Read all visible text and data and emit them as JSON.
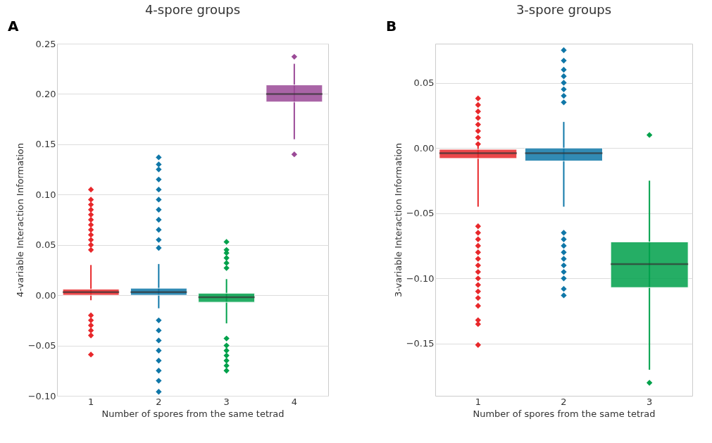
{
  "chart_data": [
    {
      "type": "box",
      "title": "4-spore groups",
      "xlabel": "Number of spores from the same tetrad",
      "ylabel": "4-variable Interaction Information",
      "annotations": [
        "A"
      ],
      "categories": [
        "1",
        "2",
        "3",
        "4"
      ],
      "colors": [
        "#e8282b",
        "#0f77a8",
        "#00a14b",
        "#9b4a97"
      ],
      "ylim": [
        -0.1,
        0.25
      ],
      "yticks": [
        {
          "value": -0.1,
          "label": "−0.10"
        },
        {
          "value": -0.05,
          "label": "−0.05"
        },
        {
          "value": 0.0,
          "label": "0.00"
        },
        {
          "value": 0.05,
          "label": "0.05"
        },
        {
          "value": 0.1,
          "label": "0.10"
        },
        {
          "value": 0.15,
          "label": "0.15"
        },
        {
          "value": 0.2,
          "label": "0.20"
        },
        {
          "value": 0.25,
          "label": "0.25"
        }
      ],
      "grid": "y",
      "marker": "diamond",
      "boxes": [
        {
          "low": -0.005,
          "q1": 0.0,
          "median": 0.003,
          "q3": 0.006,
          "high": 0.03,
          "outliers": [
            0.045,
            0.05,
            0.055,
            0.06,
            0.065,
            0.07,
            0.075,
            0.08,
            0.085,
            0.09,
            0.095,
            0.105,
            -0.02,
            -0.025,
            -0.03,
            -0.035,
            -0.04,
            -0.059
          ]
        },
        {
          "low": -0.013,
          "q1": 0.0,
          "median": 0.003,
          "q3": 0.007,
          "high": 0.031,
          "outliers": [
            0.047,
            0.055,
            0.065,
            0.075,
            0.085,
            0.095,
            0.105,
            0.115,
            0.125,
            0.13,
            0.137,
            -0.025,
            -0.035,
            -0.045,
            -0.055,
            -0.065,
            -0.075,
            -0.085,
            -0.096
          ]
        },
        {
          "low": -0.028,
          "q1": -0.007,
          "median": -0.002,
          "q3": 0.002,
          "high": 0.016,
          "outliers": [
            0.027,
            0.032,
            0.037,
            0.042,
            0.045,
            0.053,
            -0.043,
            -0.05,
            -0.055,
            -0.06,
            -0.065,
            -0.07,
            -0.075
          ]
        },
        {
          "low": 0.155,
          "q1": 0.192,
          "median": 0.2,
          "q3": 0.209,
          "high": 0.23,
          "outliers": [
            0.237,
            0.14
          ]
        }
      ]
    },
    {
      "type": "box",
      "title": "3-spore groups",
      "xlabel": "Number of spores from the same tetrad",
      "ylabel": "3-variable Interaction Information",
      "annotations": [
        "B"
      ],
      "categories": [
        "1",
        "2",
        "3"
      ],
      "colors": [
        "#e8282b",
        "#0f77a8",
        "#00a14b"
      ],
      "ylim": [
        -0.19,
        0.08
      ],
      "yticks": [
        {
          "value": -0.15,
          "label": "−0.15"
        },
        {
          "value": -0.1,
          "label": "−0.10"
        },
        {
          "value": -0.05,
          "label": "−0.05"
        },
        {
          "value": 0.0,
          "label": "0.00"
        },
        {
          "value": 0.05,
          "label": "0.05"
        }
      ],
      "grid": "y",
      "marker": "diamond",
      "boxes": [
        {
          "low": -0.045,
          "q1": -0.008,
          "median": -0.004,
          "q3": -0.001,
          "high": 0.002,
          "outliers": [
            0.003,
            0.008,
            0.013,
            0.018,
            0.023,
            0.028,
            0.033,
            0.038,
            -0.06,
            -0.065,
            -0.07,
            -0.075,
            -0.08,
            -0.085,
            -0.09,
            -0.095,
            -0.1,
            -0.105,
            -0.11,
            -0.115,
            -0.121,
            -0.132,
            -0.135,
            -0.151
          ]
        },
        {
          "low": -0.045,
          "q1": -0.01,
          "median": -0.004,
          "q3": 0.0,
          "high": 0.02,
          "outliers": [
            0.035,
            0.04,
            0.045,
            0.05,
            0.055,
            0.06,
            0.067,
            0.075,
            -0.065,
            -0.07,
            -0.075,
            -0.08,
            -0.085,
            -0.09,
            -0.095,
            -0.1,
            -0.108,
            -0.113
          ]
        },
        {
          "low": -0.17,
          "q1": -0.107,
          "median": -0.089,
          "q3": -0.072,
          "high": -0.025,
          "outliers": [
            0.01,
            -0.18
          ]
        }
      ]
    }
  ]
}
